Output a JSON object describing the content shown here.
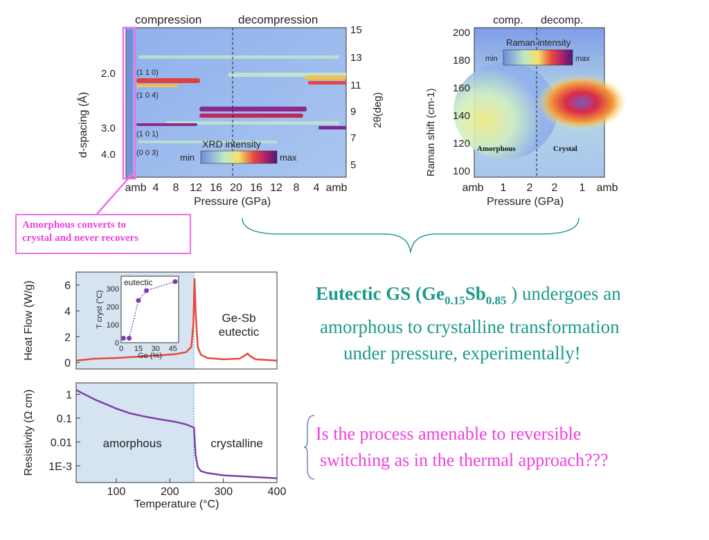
{
  "xrd_panel": {
    "phase_left": "compression",
    "phase_right": "decompression",
    "y_left_label": "d-spacing (Å)",
    "y_left_ticks": [
      "2.0",
      "3.0",
      "4.0"
    ],
    "y_right_label": "2θ(deg)",
    "y_right_ticks": [
      "15",
      "13",
      "11",
      "9",
      "7",
      "5"
    ],
    "x_label": "Pressure (GPa)",
    "x_ticks": [
      "amb",
      "4",
      "8",
      "12",
      "16",
      "20",
      "16",
      "12",
      "8",
      "4",
      "amb"
    ],
    "peak_labels": [
      "(1 1 0)",
      "(1 0 4)",
      "(1 0 1)",
      "(0 0 3)"
    ],
    "colorbar_title": "XRD intensity",
    "colorbar_min": "min",
    "colorbar_max": "max"
  },
  "raman_panel": {
    "phase_left": "comp.",
    "phase_right": "decomp.",
    "y_label": "Raman shift (cm-1)",
    "y_ticks": [
      "200",
      "180",
      "160",
      "140",
      "120",
      "100"
    ],
    "x_label": "Pressure (GPa)",
    "x_ticks": [
      "amb",
      "1",
      "2",
      "2",
      "1",
      "amb"
    ],
    "colorbar_title": "Raman intensity",
    "colorbar_min": "min",
    "colorbar_max": "max",
    "region_left": "Amorphous",
    "region_right": "Crystal"
  },
  "annotation": {
    "line1": "Amorphous converts  to",
    "line2": "crystal and never recovers"
  },
  "statement": {
    "bold_prefix": "Eutectic GS (Ge",
    "sub1": "0.15",
    "mid": "Sb",
    "sub2": "0.85",
    "rest_line1": " ) undergoes an",
    "line2": "amorphous to crystalline transformation",
    "line3": "under pressure, experimentally!"
  },
  "question": {
    "line1": "Is the process amenable to reversible",
    "line2": "switching as in the thermal approach???"
  },
  "colors": {
    "teal": "#1a9a8a",
    "magenta": "#ef3fdf",
    "data_red": "#e8463c",
    "data_purple": "#7b3fa6",
    "amorphous_shade": "#d6e4f2"
  },
  "chart_data": [
    {
      "type": "line",
      "ylabel": "Heat Flow (W/g)",
      "yticks": [
        "0",
        "2",
        "4",
        "6"
      ],
      "ylim": [
        -0.5,
        7
      ],
      "xlim": [
        25,
        400
      ],
      "annotation": "Ge-Sb\neutectic",
      "x": [
        25,
        60,
        100,
        140,
        180,
        210,
        230,
        240,
        244,
        246,
        248,
        252,
        258,
        270,
        300,
        330,
        340,
        345,
        350,
        360,
        400
      ],
      "values": [
        0.15,
        0.3,
        0.35,
        0.45,
        0.55,
        0.65,
        0.8,
        1.2,
        3.0,
        6.5,
        4.0,
        1.2,
        0.6,
        0.35,
        0.25,
        0.3,
        0.55,
        0.7,
        0.5,
        0.25,
        0.15
      ],
      "inset": {
        "type": "scatter",
        "title": "eutectic",
        "ylabel": "T cryst (°C)",
        "yticks": [
          "0",
          "100",
          "200",
          "300"
        ],
        "xlabel": "Ge (%)",
        "xticks": [
          "0",
          "15",
          "30",
          "45"
        ],
        "xlim": [
          0,
          50
        ],
        "ylim": [
          0,
          370
        ],
        "x": [
          2,
          7,
          15,
          22,
          47
        ],
        "values": [
          25,
          25,
          235,
          290,
          340
        ]
      }
    },
    {
      "type": "line",
      "xlabel": "Temperature (°C)",
      "ylabel": "Resistivity (Ω cm)",
      "xticks": [
        "100",
        "200",
        "300",
        "400"
      ],
      "yticks": [
        "1",
        "0.1",
        "0.01",
        "1E-3"
      ],
      "yscale": "log",
      "ylim": [
        0.0002,
        3
      ],
      "xlim": [
        25,
        400
      ],
      "regions": [
        "amorphous",
        "crystalline"
      ],
      "x": [
        25,
        60,
        100,
        125,
        150,
        180,
        210,
        230,
        245,
        248,
        252,
        258,
        270,
        300,
        350,
        400
      ],
      "values": [
        1.5,
        0.6,
        0.25,
        0.16,
        0.12,
        0.09,
        0.07,
        0.055,
        0.04,
        0.003,
        0.0009,
        0.0006,
        0.0005,
        0.0004,
        0.00035,
        0.0003
      ]
    }
  ]
}
